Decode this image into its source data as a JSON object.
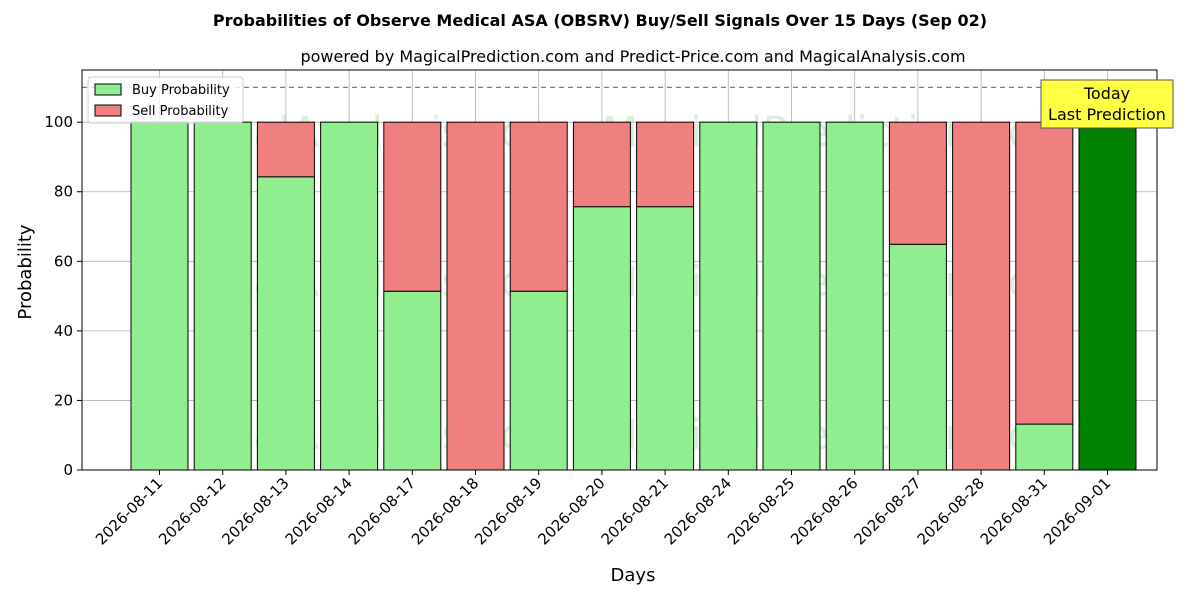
{
  "chart_data": {
    "type": "bar",
    "stacked": true,
    "title": "Probabilities of Observe Medical ASA (OBSRV) Buy/Sell Signals Over 15 Days (Sep 02)",
    "subtitle": "powered by MagicalPrediction.com and Predict-Price.com and MagicalAnalysis.com",
    "xlabel": "Days",
    "ylabel": "Probability",
    "ylim": [
      0,
      115
    ],
    "yticks": [
      0,
      20,
      40,
      60,
      80,
      100
    ],
    "grid": true,
    "reference_line": 110,
    "categories": [
      "2026-08-11",
      "2026-08-12",
      "2026-08-13",
      "2026-08-14",
      "2026-08-17",
      "2026-08-18",
      "2026-08-19",
      "2026-08-20",
      "2026-08-21",
      "2026-08-24",
      "2026-08-25",
      "2026-08-26",
      "2026-08-27",
      "2026-08-28",
      "2026-08-31",
      "2026-09-01"
    ],
    "series": [
      {
        "name": "Buy Probability",
        "color": "#90ee90",
        "values": [
          100,
          100,
          84.3,
          100,
          51.4,
          0,
          51.4,
          75.7,
          75.7,
          100,
          100,
          100,
          64.9,
          0,
          13.2,
          100
        ]
      },
      {
        "name": "Sell Probability",
        "color": "#f08080",
        "values": [
          0,
          0,
          15.7,
          0,
          48.6,
          100,
          48.6,
          24.3,
          24.3,
          0,
          0,
          0,
          35.1,
          100,
          86.8,
          0
        ]
      }
    ],
    "highlight": {
      "index": 15,
      "color": "#008000"
    },
    "annotation": {
      "lines": [
        "Today",
        "Last Prediction"
      ],
      "bg": "#ffff44"
    },
    "legend": "top-left",
    "watermarks": [
      "MagicalAnalysis.com",
      "MagicalPrediction.com"
    ]
  }
}
